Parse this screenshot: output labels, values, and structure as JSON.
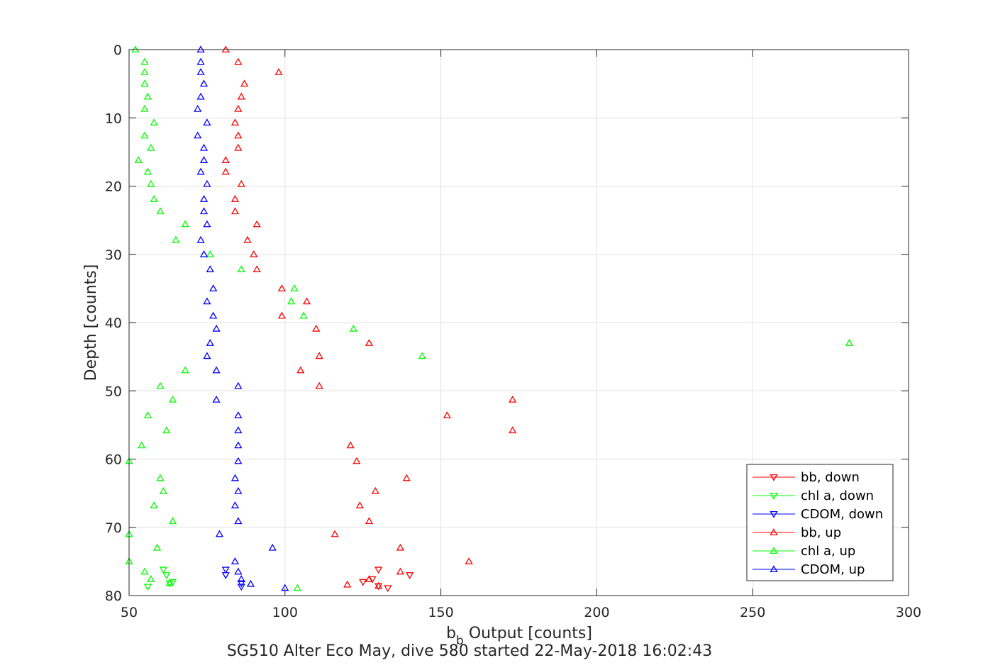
{
  "chart_data": {
    "type": "scatter",
    "title": "",
    "xlabel_base": "b",
    "xlabel_sub": "b",
    "xlabel_rest": " Output [counts]",
    "ylabel": "Depth [counts]",
    "caption": "SG510 Alter Eco May, dive 580 started 22-May-2018 16:02:43",
    "xlim": [
      50,
      300
    ],
    "ylim": [
      0,
      80
    ],
    "y_reversed": true,
    "grid": true,
    "legend_position": "bottom-right",
    "x_ticks": [
      "50",
      "100",
      "150",
      "200",
      "250",
      "300"
    ],
    "y_ticks": [
      "0",
      "10",
      "20",
      "30",
      "40",
      "50",
      "60",
      "70",
      "80"
    ],
    "series": [
      {
        "name": "bb, down",
        "color": "#ff0000",
        "marker": "triangle-down",
        "points": [
          [
            130,
            76.2
          ],
          [
            140,
            77.0
          ],
          [
            125,
            78.0
          ],
          [
            128,
            77.6
          ],
          [
            130,
            78.6
          ],
          [
            133,
            78.9
          ]
        ]
      },
      {
        "name": "chl a, down",
        "color": "#00ff00",
        "marker": "triangle-down",
        "points": [
          [
            61,
            76.2
          ],
          [
            62,
            77.0
          ],
          [
            64,
            78.0
          ],
          [
            63,
            78.2
          ],
          [
            56,
            78.7
          ]
        ]
      },
      {
        "name": "CDOM, down",
        "color": "#0000ff",
        "marker": "triangle-down",
        "points": [
          [
            81,
            76.2
          ],
          [
            81,
            77.0
          ],
          [
            86,
            78.2
          ],
          [
            86,
            78.7
          ]
        ]
      },
      {
        "name": "bb, up",
        "color": "#ff0000",
        "marker": "triangle-up",
        "points": [
          [
            81,
            0
          ],
          [
            85,
            1.8
          ],
          [
            98,
            3.3
          ],
          [
            87,
            5
          ],
          [
            86,
            6.9
          ],
          [
            85,
            8.7
          ],
          [
            84,
            10.7
          ],
          [
            85,
            12.6
          ],
          [
            85,
            14.4
          ],
          [
            81,
            16.2
          ],
          [
            81,
            17.9
          ],
          [
            86,
            19.7
          ],
          [
            84,
            21.9
          ],
          [
            84,
            23.7
          ],
          [
            91,
            25.6
          ],
          [
            88,
            27.9
          ],
          [
            90,
            30.0
          ],
          [
            91,
            32.2
          ],
          [
            99,
            35.0
          ],
          [
            107,
            36.9
          ],
          [
            99,
            39.0
          ],
          [
            110,
            40.9
          ],
          [
            127,
            43.0
          ],
          [
            111,
            44.9
          ],
          [
            105,
            47.0
          ],
          [
            111,
            49.3
          ],
          [
            173,
            51.3
          ],
          [
            152,
            53.6
          ],
          [
            173,
            55.8
          ],
          [
            121,
            58.0
          ],
          [
            123,
            60.3
          ],
          [
            139,
            62.8
          ],
          [
            129,
            64.7
          ],
          [
            124,
            66.8
          ],
          [
            127,
            69.1
          ],
          [
            116,
            71.0
          ],
          [
            137,
            73.0
          ],
          [
            159,
            75.0
          ],
          [
            137,
            76.5
          ],
          [
            127,
            77.6
          ],
          [
            120,
            78.4
          ],
          [
            130,
            78.6
          ]
        ]
      },
      {
        "name": "chl a, up",
        "color": "#00ff00",
        "marker": "triangle-up",
        "points": [
          [
            52,
            0
          ],
          [
            55,
            1.8
          ],
          [
            55,
            3.3
          ],
          [
            55,
            5
          ],
          [
            56,
            6.9
          ],
          [
            55,
            8.7
          ],
          [
            58,
            10.7
          ],
          [
            55,
            12.6
          ],
          [
            57,
            14.4
          ],
          [
            53,
            16.2
          ],
          [
            56,
            17.9
          ],
          [
            57,
            19.7
          ],
          [
            58,
            21.9
          ],
          [
            60,
            23.7
          ],
          [
            68,
            25.6
          ],
          [
            65,
            27.9
          ],
          [
            76,
            30.0
          ],
          [
            86,
            32.2
          ],
          [
            103,
            35.0
          ],
          [
            102,
            36.9
          ],
          [
            106,
            39.0
          ],
          [
            122,
            40.9
          ],
          [
            281,
            43.0
          ],
          [
            144,
            44.9
          ],
          [
            68,
            47.0
          ],
          [
            60,
            49.3
          ],
          [
            64,
            51.3
          ],
          [
            56,
            53.6
          ],
          [
            62,
            55.8
          ],
          [
            54,
            58.0
          ],
          [
            50,
            60.3
          ],
          [
            60,
            62.8
          ],
          [
            61,
            64.7
          ],
          [
            58,
            66.8
          ],
          [
            64,
            69.1
          ],
          [
            50,
            71.0
          ],
          [
            59,
            73.0
          ],
          [
            50,
            75.0
          ],
          [
            55,
            76.5
          ],
          [
            57,
            77.6
          ],
          [
            63,
            78.2
          ],
          [
            104,
            78.9
          ]
        ]
      },
      {
        "name": "CDOM, up",
        "color": "#0000ff",
        "marker": "triangle-up",
        "points": [
          [
            73,
            0
          ],
          [
            73,
            1.8
          ],
          [
            73,
            3.3
          ],
          [
            74,
            5
          ],
          [
            73,
            6.9
          ],
          [
            72,
            8.7
          ],
          [
            75,
            10.7
          ],
          [
            72,
            12.6
          ],
          [
            74,
            14.4
          ],
          [
            74,
            16.2
          ],
          [
            73,
            17.9
          ],
          [
            75,
            19.7
          ],
          [
            74,
            21.9
          ],
          [
            74,
            23.7
          ],
          [
            75,
            25.6
          ],
          [
            73,
            27.9
          ],
          [
            74,
            30.0
          ],
          [
            76,
            32.2
          ],
          [
            77,
            35.0
          ],
          [
            75,
            36.9
          ],
          [
            77,
            39.0
          ],
          [
            78,
            40.9
          ],
          [
            76,
            43.0
          ],
          [
            75,
            44.9
          ],
          [
            78,
            47.0
          ],
          [
            85,
            49.3
          ],
          [
            78,
            51.3
          ],
          [
            85,
            53.6
          ],
          [
            85,
            55.8
          ],
          [
            85,
            58.0
          ],
          [
            85,
            60.3
          ],
          [
            84,
            62.8
          ],
          [
            85,
            64.7
          ],
          [
            84,
            66.8
          ],
          [
            85,
            69.1
          ],
          [
            79,
            71.0
          ],
          [
            96,
            73.0
          ],
          [
            84,
            75.0
          ],
          [
            85,
            76.5
          ],
          [
            86,
            77.6
          ],
          [
            89,
            78.3
          ],
          [
            100,
            78.9
          ]
        ]
      }
    ]
  }
}
